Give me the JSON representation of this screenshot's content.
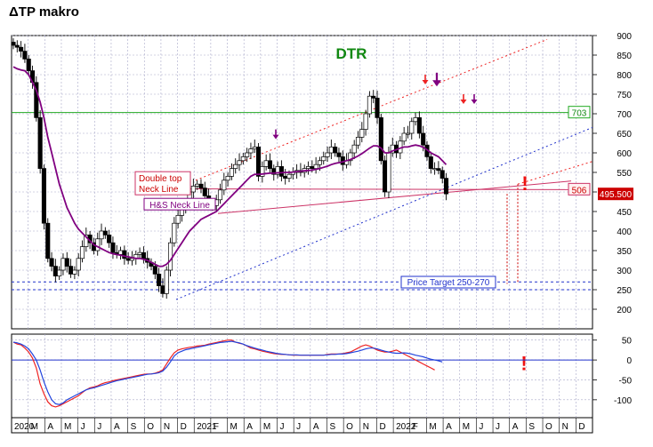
{
  "header": {
    "title": "ΔTP makro"
  },
  "chart_data": [
    {
      "type": "candlestick",
      "title": "DTR",
      "title_color": "#118811",
      "xlabel": "",
      "ylabel": "",
      "ylim": [
        150,
        900
      ],
      "yticks": [
        200,
        250,
        300,
        350,
        400,
        450,
        500,
        550,
        600,
        650,
        700,
        750,
        800,
        850,
        900
      ],
      "x_month_labels": [
        "2020",
        "M",
        "A",
        "M",
        "J",
        "J",
        "A",
        "S",
        "O",
        "N",
        "D",
        "2021",
        "F",
        "M",
        "A",
        "M",
        "J",
        "J",
        "A",
        "S",
        "O",
        "N",
        "D",
        "2022",
        "F",
        "M",
        "A",
        "M",
        "J",
        "J",
        "A",
        "S",
        "O",
        "N",
        "D"
      ],
      "grid": true,
      "weekly_close": [
        875,
        870,
        860,
        840,
        810,
        780,
        690,
        560,
        420,
        330,
        310,
        285,
        300,
        330,
        310,
        290,
        300,
        330,
        360,
        390,
        370,
        350,
        380,
        400,
        390,
        370,
        345,
        340,
        350,
        330,
        325,
        330,
        340,
        345,
        330,
        320,
        310,
        290,
        260,
        240,
        300,
        370,
        420,
        440,
        455,
        470,
        500,
        515,
        520,
        510,
        490,
        470,
        465,
        480,
        505,
        530,
        540,
        560,
        570,
        580,
        590,
        600,
        610,
        615,
        540,
        565,
        580,
        560,
        545,
        565,
        540,
        535,
        545,
        550,
        555,
        550,
        560,
        565,
        560,
        570,
        580,
        590,
        600,
        615,
        600,
        590,
        570,
        580,
        600,
        620,
        640,
        660,
        700,
        745,
        740,
        690,
        580,
        500,
        600,
        620,
        600,
        630,
        650,
        650,
        680,
        690,
        650,
        620,
        590,
        560,
        560,
        555,
        535,
        495
      ],
      "last_price": "495.500",
      "last_price_color": "#cc0000",
      "moving_average": {
        "color": "#800080",
        "values": [
          820,
          815,
          812,
          810,
          800,
          780,
          760,
          730,
          690,
          640,
          600,
          560,
          520,
          490,
          460,
          440,
          420,
          405,
          395,
          385,
          375,
          365,
          360,
          355,
          350,
          345,
          342,
          340,
          338,
          336,
          334,
          332,
          330,
          330,
          328,
          325,
          320,
          315,
          310,
          310,
          315,
          325,
          340,
          355,
          370,
          385,
          400,
          410,
          420,
          430,
          435,
          440,
          445,
          450,
          460,
          470,
          480,
          490,
          500,
          510,
          520,
          530,
          540,
          545,
          545,
          546,
          547,
          548,
          548,
          549,
          549,
          550,
          550,
          551,
          552,
          553,
          554,
          555,
          556,
          558,
          560,
          563,
          566,
          570,
          573,
          575,
          577,
          580,
          583,
          587,
          592,
          598,
          605,
          612,
          618,
          618,
          612,
          600,
          600,
          605,
          608,
          612,
          615,
          615,
          618,
          620,
          618,
          614,
          608,
          600,
          595,
          590,
          580,
          570
        ]
      },
      "annotations": {
        "level_703": "703",
        "level_506": "506",
        "double_top": [
          "Double top",
          "Neck Line"
        ],
        "hs_neck": "H&S Neck Line",
        "price_target": "Price Target 250-270",
        "exclamation": "!"
      }
    },
    {
      "type": "line",
      "title": "",
      "ylim": [
        -145,
        65
      ],
      "yticks": [
        50,
        0,
        -50,
        -100
      ],
      "series": [
        {
          "color": "#ee2222",
          "values": [
            45,
            40,
            38,
            30,
            20,
            5,
            -20,
            -60,
            -85,
            -105,
            -115,
            -118,
            -115,
            -110,
            -105,
            -100,
            -95,
            -90,
            -82,
            -75,
            -70,
            -68,
            -65,
            -60,
            -57,
            -55,
            -52,
            -50,
            -48,
            -46,
            -44,
            -42,
            -40,
            -38,
            -36,
            -35,
            -35,
            -33,
            -30,
            -25,
            -10,
            5,
            18,
            25,
            28,
            30,
            32,
            33,
            35,
            36,
            37,
            40,
            42,
            44,
            46,
            48,
            50,
            50,
            45,
            42,
            40,
            35,
            30,
            28,
            25,
            22,
            20,
            18,
            16,
            15,
            14,
            14,
            13,
            12,
            12,
            12,
            12,
            12,
            12,
            12,
            12,
            12,
            14,
            15,
            15,
            15,
            16,
            18,
            20,
            25,
            30,
            35,
            38,
            35,
            30,
            25,
            22,
            20,
            20,
            22,
            25,
            20,
            15,
            10,
            5,
            0,
            -5,
            -10,
            -15,
            -20,
            -25
          ]
        },
        {
          "color": "#2244dd",
          "values": [
            45,
            43,
            40,
            35,
            28,
            15,
            0,
            -25,
            -55,
            -80,
            -100,
            -110,
            -112,
            -108,
            -100,
            -95,
            -90,
            -85,
            -80,
            -75,
            -72,
            -70,
            -67,
            -64,
            -61,
            -58,
            -55,
            -52,
            -50,
            -48,
            -46,
            -44,
            -42,
            -40,
            -38,
            -36,
            -35,
            -34,
            -32,
            -28,
            -18,
            -5,
            10,
            18,
            22,
            26,
            28,
            30,
            32,
            34,
            36,
            38,
            40,
            42,
            44,
            45,
            46,
            47,
            45,
            43,
            40,
            36,
            33,
            30,
            27,
            25,
            22,
            20,
            18,
            16,
            15,
            14,
            13,
            13,
            13,
            12,
            12,
            12,
            12,
            12,
            12,
            12,
            13,
            14,
            14,
            15,
            15,
            16,
            18,
            20,
            22,
            25,
            28,
            30,
            30,
            28,
            25,
            22,
            20,
            18,
            17,
            17,
            18,
            17,
            15,
            12,
            10,
            8,
            5,
            2,
            0,
            -2,
            -5
          ]
        }
      ],
      "exclamation": "!"
    }
  ]
}
